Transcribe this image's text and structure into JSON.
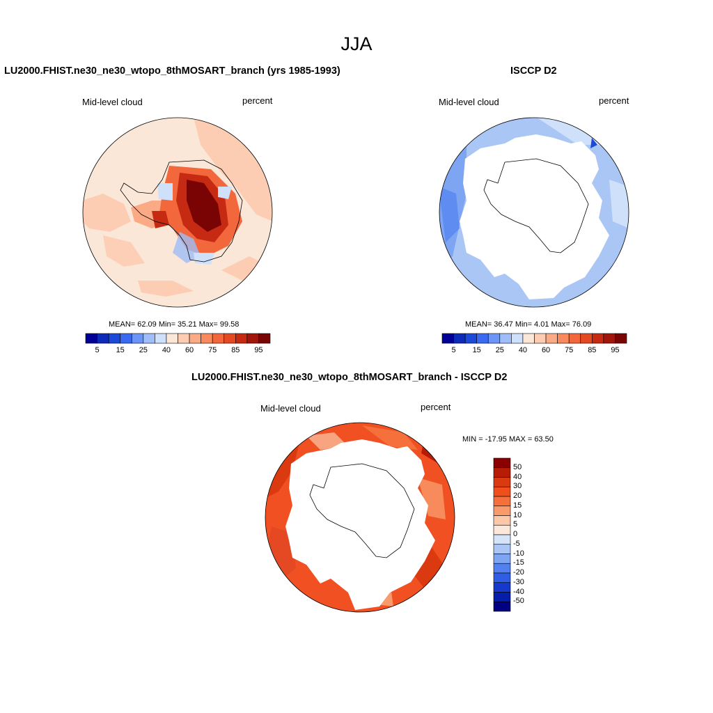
{
  "figure_title": "JJA",
  "panels": {
    "model": {
      "title": "LU2000.FHIST.ne30_ne30_wtopo_8thMOSART_branch (yrs 1985-1993)",
      "left_label": "Mid-level cloud",
      "right_label": "percent",
      "stats": "MEAN=  62.09  Min=  35.21  Max=  99.58"
    },
    "obs": {
      "title": "ISCCP D2",
      "left_label": "Mid-level cloud",
      "right_label": "percent",
      "stats": "MEAN=  36.47  Min=   4.01  Max=  76.09"
    },
    "diff": {
      "title": "LU2000.FHIST.ne30_ne30_wtopo_8thMOSART_branch - ISCCP D2",
      "left_label": "Mid-level cloud",
      "right_label": "percent",
      "stats": "MIN = -17.95 MAX =  63.50"
    }
  },
  "colorbar_main": {
    "colors": [
      "#000096",
      "#0e2bb7",
      "#1c49d8",
      "#3a6af0",
      "#6c95f5",
      "#9fbdf8",
      "#cfe0fb",
      "#fbe7d8",
      "#fcccb3",
      "#fbaa86",
      "#f88a5e",
      "#f2683c",
      "#e44923",
      "#c62a12",
      "#a1150a",
      "#7a0403"
    ],
    "labels": [
      "5",
      "15",
      "25",
      "40",
      "60",
      "75",
      "85",
      "95"
    ]
  },
  "colorbar_diff": {
    "colors": [
      "#8b0000",
      "#b71c07",
      "#db3a10",
      "#f04f1c",
      "#f5703a",
      "#f99a6a",
      "#fcc8a8",
      "#fbe8da",
      "#d6e4f8",
      "#aac6f5",
      "#7ea5f2",
      "#5281ef",
      "#2f5ee4",
      "#1539cc",
      "#041ea9",
      "#000080"
    ],
    "labels": [
      "50",
      "40",
      "30",
      "20",
      "15",
      "10",
      "5",
      "0",
      "-5",
      "-10",
      "-15",
      "-20",
      "-30",
      "-40",
      "-50"
    ]
  }
}
